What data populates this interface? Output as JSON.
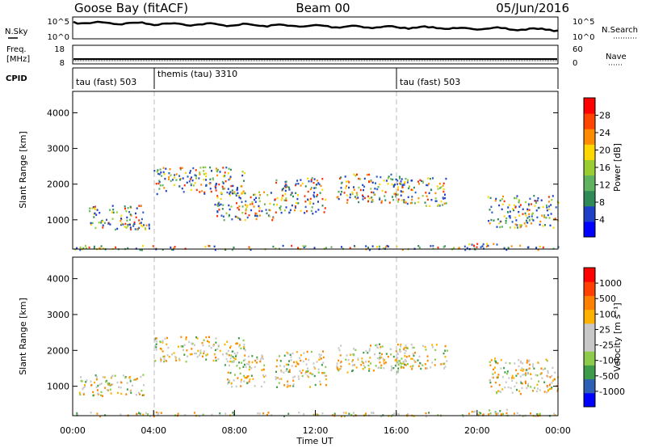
{
  "header": {
    "title_left": "Goose Bay (fitACF)",
    "title_center": "Beam 00",
    "title_right": "05/Jun/2016"
  },
  "sky_panel": {
    "label_left": "N.Sky",
    "label_right": "N.Search",
    "left_ticks": [
      "10^5",
      "10^0"
    ],
    "right_ticks": [
      "10^5",
      "10^0"
    ]
  },
  "freq_panel": {
    "label_left_1": "Freq.",
    "label_left_2": "[MHz]",
    "label_right": "Nave",
    "left_ticks": [
      "18",
      "8"
    ],
    "right_ticks": [
      "60",
      "0"
    ]
  },
  "cpid": {
    "label": "CPID",
    "segments": [
      {
        "label": "tau (fast) 503",
        "start_hour": 0,
        "end_hour": 4
      },
      {
        "label": "themis (tau) 3310",
        "start_hour": 4,
        "end_hour": 16
      },
      {
        "label": "tau (fast) 503",
        "start_hour": 16,
        "end_hour": 24
      }
    ]
  },
  "colorbar_power": {
    "label": "Power [dB]",
    "ticks": [
      "28",
      "24",
      "20",
      "16",
      "12",
      "8",
      "4"
    ],
    "colors": [
      "#0000ff",
      "#1e40c8",
      "#2e8b57",
      "#5fb35f",
      "#9acd32",
      "#ffd700",
      "#ff8c00",
      "#ff4500",
      "#ff0000"
    ]
  },
  "colorbar_velocity": {
    "label": "Velocity [m s⁻¹]",
    "ticks": [
      "1000",
      "500",
      "100",
      "25",
      "-25",
      "-100",
      "-500",
      "-1000"
    ],
    "colors": [
      "#0000ff",
      "#2d5fb4",
      "#3e9b4a",
      "#8ccc4a",
      "#c8c8c8",
      "#c8c8c8",
      "#ffb000",
      "#ff8000",
      "#ff4000",
      "#ff0000"
    ]
  },
  "chart_data": [
    {
      "type": "heatmap",
      "panel": "power",
      "xlabel": "",
      "ylabel": "Slant Range [km]",
      "xlim": [
        0,
        24
      ],
      "ylim": [
        180,
        4600
      ],
      "yticks": [
        "1000",
        "2000",
        "3000",
        "4000"
      ],
      "colorbar": "Power [dB]",
      "series": [
        {
          "x": [
            0.3,
            3.6
          ],
          "y": [
            1350,
            1420
          ]
        },
        {
          "x": [
            0.8,
            3.6
          ],
          "y": [
            750,
            1350
          ]
        },
        {
          "x": [
            2.5,
            3.8
          ],
          "y": [
            750,
            900
          ]
        },
        {
          "x": [
            4.0,
            8.5
          ],
          "y": [
            1700,
            2500
          ]
        },
        {
          "x": [
            7.0,
            10.0
          ],
          "y": [
            1000,
            1800
          ]
        },
        {
          "x": [
            10.0,
            12.5
          ],
          "y": [
            1200,
            2200
          ]
        },
        {
          "x": [
            13.0,
            16.5
          ],
          "y": [
            1500,
            2300
          ]
        },
        {
          "x": [
            16.0,
            18.5
          ],
          "y": [
            1400,
            2200
          ]
        },
        {
          "x": [
            19.5,
            21.5
          ],
          "y": [
            280,
            360
          ]
        },
        {
          "x": [
            20.5,
            24.0
          ],
          "y": [
            800,
            1700
          ]
        },
        {
          "x": [
            0.0,
            24.0
          ],
          "y": [
            180,
            300
          ]
        }
      ]
    },
    {
      "type": "heatmap",
      "panel": "velocity",
      "xlabel": "Time UT",
      "ylabel": "Slant Range [km]",
      "xlim": [
        0,
        24
      ],
      "ylim": [
        180,
        4600
      ],
      "xticks": [
        "00:00",
        "04:00",
        "08:00",
        "12:00",
        "16:00",
        "20:00",
        "00:00"
      ],
      "yticks": [
        "1000",
        "2000",
        "3000",
        "4000"
      ],
      "colorbar": "Velocity [m s⁻¹]",
      "series": [
        {
          "x": [
            0.3,
            3.6
          ],
          "y": [
            750,
            1350
          ]
        },
        {
          "x": [
            4.0,
            8.5
          ],
          "y": [
            1700,
            2400
          ]
        },
        {
          "x": [
            7.5,
            9.5
          ],
          "y": [
            1000,
            1900
          ]
        },
        {
          "x": [
            10.0,
            12.5
          ],
          "y": [
            1000,
            2000
          ]
        },
        {
          "x": [
            13.0,
            16.5
          ],
          "y": [
            1400,
            2200
          ]
        },
        {
          "x": [
            16.0,
            18.5
          ],
          "y": [
            1500,
            2200
          ]
        },
        {
          "x": [
            19.5,
            21.5
          ],
          "y": [
            250,
            380
          ]
        },
        {
          "x": [
            20.5,
            24.0
          ],
          "y": [
            800,
            1800
          ]
        },
        {
          "x": [
            0.0,
            24.0
          ],
          "y": [
            180,
            300
          ]
        }
      ]
    }
  ]
}
